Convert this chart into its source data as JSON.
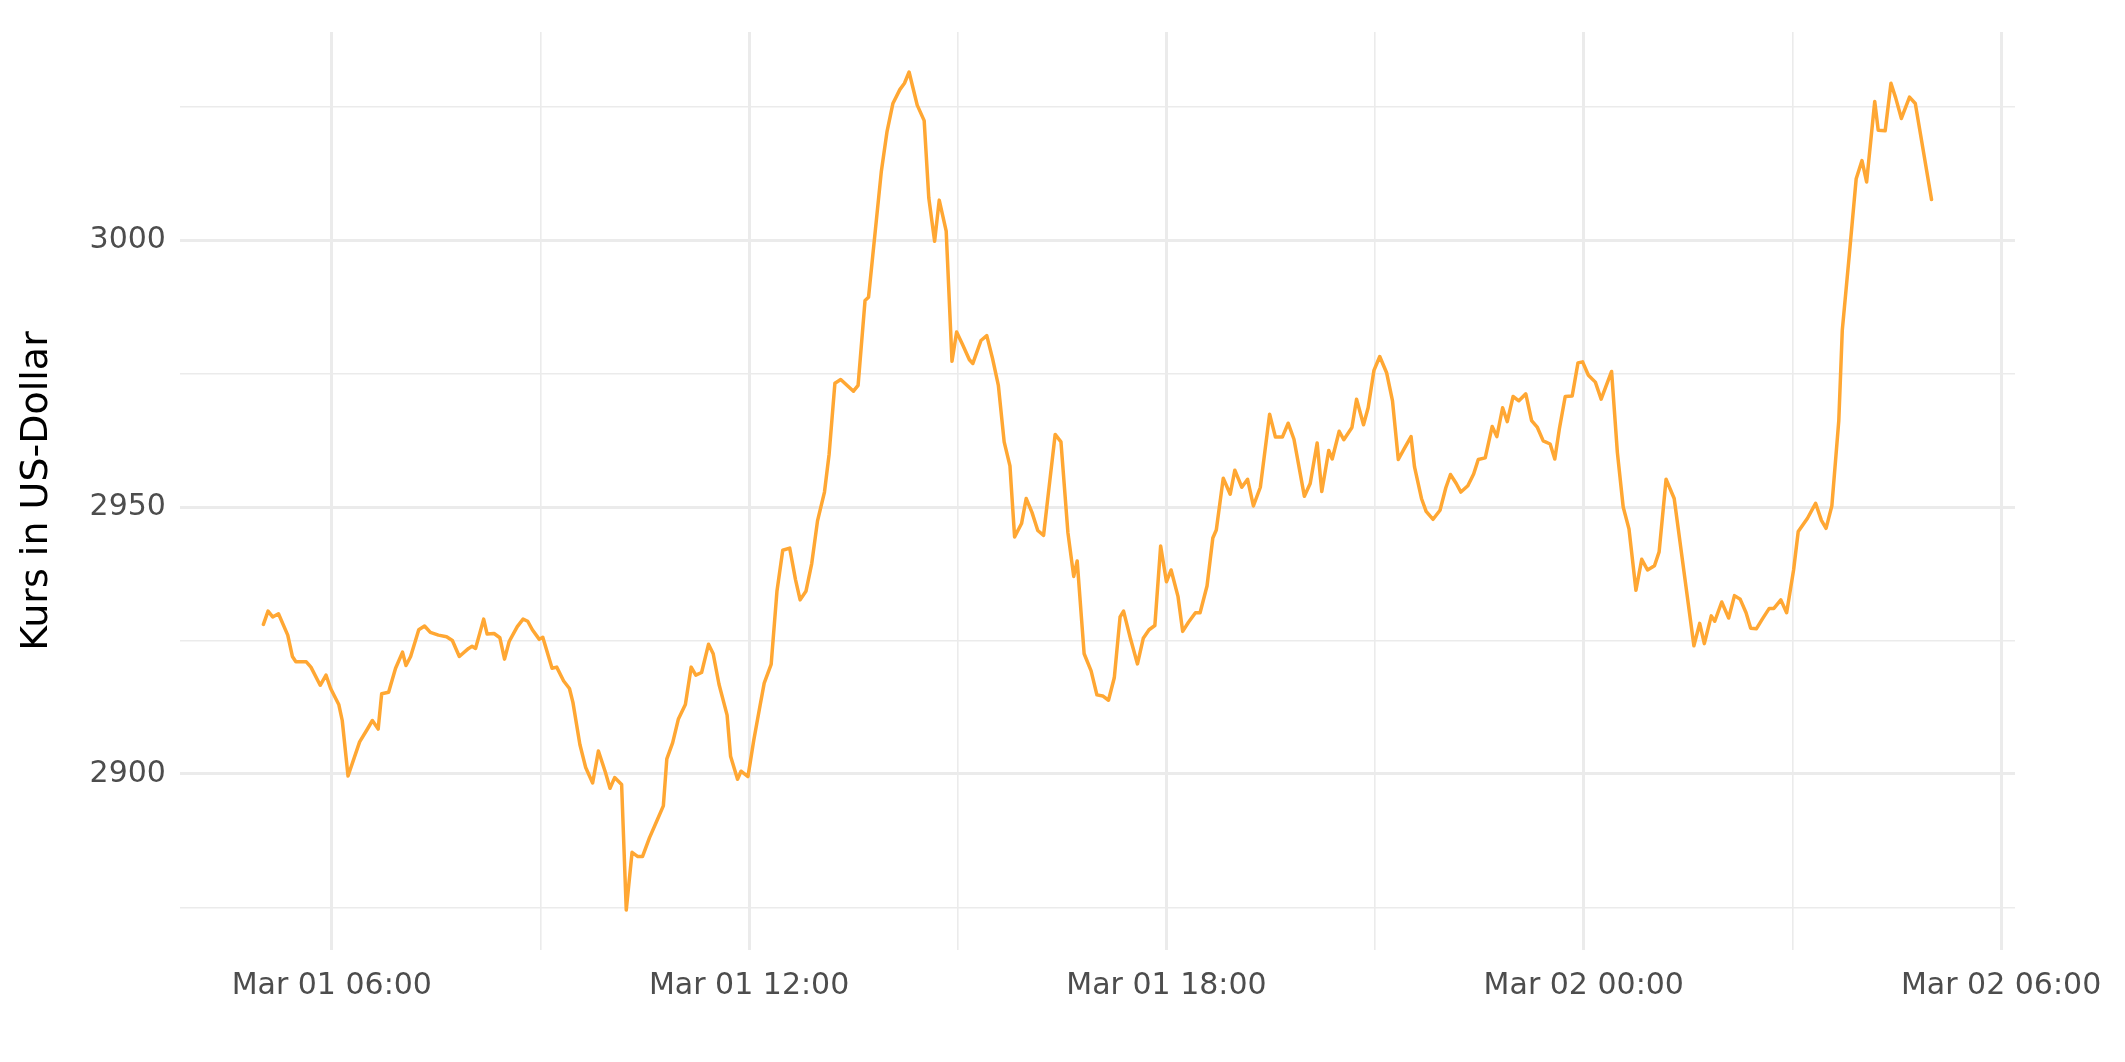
{
  "chart_data": {
    "type": "line",
    "ylabel": "Kurs in US-Dollar",
    "xlim": [
      "--03-01T03:49",
      "--03-02T06:12"
    ],
    "ylim": [
      2867,
      3039
    ],
    "xticks": [
      {
        "value": "--03-01T06:00",
        "label": "Mar 01 06:00"
      },
      {
        "value": "--03-01T09:00",
        "label": null
      },
      {
        "value": "--03-01T12:00",
        "label": "Mar 01 12:00"
      },
      {
        "value": "--03-01T15:00",
        "label": null
      },
      {
        "value": "--03-01T18:00",
        "label": "Mar 01 18:00"
      },
      {
        "value": "--03-01T21:00",
        "label": null
      },
      {
        "value": "--03-02T00:00",
        "label": "Mar 02 00:00"
      },
      {
        "value": "--03-02T03:00",
        "label": null
      },
      {
        "value": "--03-02T06:00",
        "label": "Mar 02 06:00"
      }
    ],
    "yticks": [
      {
        "value": 2875,
        "label": null
      },
      2900,
      {
        "value": 2925,
        "label": null
      },
      2950,
      {
        "value": 2975,
        "label": null
      },
      3000,
      {
        "value": 3025,
        "label": null
      }
    ],
    "grid": true,
    "marker": "none",
    "line_style": "solid",
    "series": [
      {
        "color": "#ffa733",
        "x": [
          "--03-01T05:01",
          "--03-01T05:05",
          "--03-01T05:09",
          "--03-01T05:14",
          "--03-01T05:22",
          "--03-01T05:26",
          "--03-01T05:29",
          "--03-01T05:38",
          "--03-01T05:42",
          "--03-01T05:50",
          "--03-01T05:55",
          "--03-01T05:59",
          "--03-01T06:06",
          "--03-01T06:09",
          "--03-01T06:14",
          "--03-01T06:24",
          "--03-01T06:31",
          "--03-01T06:35",
          "--03-01T06:40",
          "--03-01T06:43",
          "--03-01T06:49",
          "--03-01T06:55",
          "--03-01T07:01",
          "--03-01T07:04",
          "--03-01T07:08",
          "--03-01T07:15",
          "--03-01T07:20",
          "--03-01T07:25",
          "--03-01T07:32",
          "--03-01T07:39",
          "--03-01T07:44",
          "--03-01T07:50",
          "--03-01T07:58",
          "--03-01T08:01",
          "--03-01T08:04",
          "--03-01T08:11",
          "--03-01T08:14",
          "--03-01T08:20",
          "--03-01T08:25",
          "--03-01T08:29",
          "--03-01T08:33",
          "--03-01T08:40",
          "--03-01T08:45",
          "--03-01T08:49",
          "--03-01T08:53",
          "--03-01T08:59",
          "--03-01T09:02",
          "--03-01T09:10",
          "--03-01T09:14",
          "--03-01T09:20",
          "--03-01T09:25",
          "--03-01T09:28",
          "--03-01T09:34",
          "--03-01T09:39",
          "--03-01T09:45",
          "--03-01T09:50",
          "--03-01T09:56",
          "--03-01T10:00",
          "--03-01T10:04",
          "--03-01T10:10",
          "--03-01T10:14",
          "--03-01T10:19",
          "--03-01T10:24",
          "--03-01T10:28",
          "--03-01T10:34",
          "--03-01T10:41",
          "--03-01T10:46",
          "--03-01T10:49",
          "--03-01T10:54",
          "--03-01T10:59",
          "--03-01T11:05",
          "--03-01T11:10",
          "--03-01T11:14",
          "--03-01T11:19",
          "--03-01T11:25",
          "--03-01T11:29",
          "--03-01T11:34",
          "--03-01T11:41",
          "--03-01T11:44",
          "--03-01T11:50",
          "--03-01T11:53",
          "--03-01T11:59",
          "--03-01T12:04",
          "--03-01T12:09",
          "--03-01T12:13",
          "--03-01T12:19",
          "--03-01T12:24",
          "--03-01T12:29",
          "--03-01T12:35",
          "--03-01T12:40",
          "--03-01T12:44",
          "--03-01T12:49",
          "--03-01T12:54",
          "--03-01T12:59",
          "--03-01T13:05",
          "--03-01T13:09",
          "--03-01T13:14",
          "--03-01T13:19",
          "--03-01T13:30",
          "--03-01T13:34",
          "--03-01T13:40",
          "--03-01T13:43",
          "--03-01T13:49",
          "--03-01T13:54",
          "--03-01T13:59",
          "--03-01T14:04",
          "--03-01T14:10",
          "--03-01T14:14",
          "--03-01T14:18",
          "--03-01T14:25",
          "--03-01T14:31",
          "--03-01T14:35",
          "--03-01T14:40",
          "--03-01T14:44",
          "--03-01T14:50",
          "--03-01T14:55",
          "--03-01T14:59",
          "--03-01T15:04",
          "--03-01T15:10",
          "--03-01T15:13",
          "--03-01T15:20",
          "--03-01T15:25",
          "--03-01T15:30",
          "--03-01T15:35",
          "--03-01T15:40",
          "--03-01T15:45",
          "--03-01T15:49",
          "--03-01T15:55",
          "--03-01T15:59",
          "--03-01T16:04",
          "--03-01T16:09",
          "--03-01T16:14",
          "--03-01T16:19",
          "--03-01T16:24",
          "--03-01T16:29",
          "--03-01T16:35",
          "--03-01T16:40",
          "--03-01T16:43",
          "--03-01T16:49",
          "--03-01T16:55",
          "--03-01T17:00",
          "--03-01T17:05",
          "--03-01T17:10",
          "--03-01T17:15",
          "--03-01T17:20",
          "--03-01T17:23",
          "--03-01T17:29",
          "--03-01T17:35",
          "--03-01T17:40",
          "--03-01T17:45",
          "--03-01T17:50",
          "--03-01T17:55",
          "--03-01T18:00",
          "--03-01T18:04",
          "--03-01T18:10",
          "--03-01T18:14",
          "--03-01T18:19",
          "--03-01T18:25",
          "--03-01T18:29",
          "--03-01T18:35",
          "--03-01T18:40",
          "--03-01T18:43",
          "--03-01T18:49",
          "--03-01T18:55",
          "--03-01T18:59",
          "--03-01T19:05",
          "--03-01T19:10",
          "--03-01T19:15",
          "--03-01T19:21",
          "--03-01T19:29",
          "--03-01T19:34",
          "--03-01T19:40",
          "--03-01T19:45",
          "--03-01T19:50",
          "--03-01T19:59",
          "--03-01T20:04",
          "--03-01T20:10",
          "--03-01T20:14",
          "--03-01T20:20",
          "--03-01T20:23",
          "--03-01T20:29",
          "--03-01T20:33",
          "--03-01T20:40",
          "--03-01T20:44",
          "--03-01T20:50",
          "--03-01T20:54",
          "--03-01T20:59",
          "--03-01T21:04",
          "--03-01T21:10",
          "--03-01T21:15",
          "--03-01T21:20",
          "--03-01T21:25",
          "--03-01T21:31",
          "--03-01T21:34",
          "--03-01T21:40",
          "--03-01T21:44",
          "--03-01T21:50",
          "--03-01T21:56",
          "--03-01T22:01",
          "--03-01T22:05",
          "--03-01T22:10",
          "--03-01T22:14",
          "--03-01T22:20",
          "--03-01T22:25",
          "--03-01T22:29",
          "--03-01T22:35",
          "--03-01T22:41",
          "--03-01T22:45",
          "--03-01T22:50",
          "--03-01T22:54",
          "--03-01T22:59",
          "--03-01T23:04",
          "--03-01T23:10",
          "--03-01T23:15",
          "--03-01T23:20",
          "--03-01T23:25",
          "--03-01T23:31",
          "--03-01T23:35",
          "--03-01T23:39",
          "--03-01T23:44",
          "--03-01T23:50",
          "--03-01T23:55",
          "--03-01T23:59",
          "--03-02T00:04",
          "--03-02T00:10",
          "--03-02T00:15",
          "--03-02T00:24",
          "--03-02T00:29",
          "--03-02T00:34",
          "--03-02T00:39",
          "--03-02T00:45",
          "--03-02T00:50",
          "--03-02T00:55",
          "--03-02T01:01",
          "--03-02T01:05",
          "--03-02T01:11",
          "--03-02T01:18",
          "--03-02T01:35",
          "--03-02T01:40",
          "--03-02T01:44",
          "--03-02T01:50",
          "--03-02T01:53",
          "--03-02T01:59",
          "--03-02T02:05",
          "--03-02T02:10",
          "--03-02T02:15",
          "--03-02T02:20",
          "--03-02T02:24",
          "--03-02T02:29",
          "--03-02T02:34",
          "--03-02T02:40",
          "--03-02T02:44",
          "--03-02T02:50",
          "--03-02T02:55",
          "--03-02T03:01",
          "--03-02T03:05",
          "--03-02T03:13",
          "--03-02T03:20",
          "--03-02T03:25",
          "--03-02T03:29",
          "--03-02T03:34",
          "--03-02T03:40",
          "--03-02T03:43",
          "--03-02T03:49",
          "--03-02T03:55",
          "--03-02T04:00",
          "--03-02T04:04",
          "--03-02T04:11",
          "--03-02T04:14",
          "--03-02T04:20",
          "--03-02T04:25",
          "--03-02T04:29",
          "--03-02T04:34",
          "--03-02T04:41",
          "--03-02T04:46",
          "--03-02T04:53",
          "--03-02T05:00"
        ],
        "values": [
          2928,
          2930.5,
          2929.4,
          2930,
          2926,
          2922,
          2921,
          2921,
          2920,
          2916.6,
          2918.5,
          2916,
          2913,
          2910,
          2899.6,
          2906,
          2908.5,
          2910,
          2908.4,
          2915,
          2915.3,
          2919.8,
          2922.8,
          2920.3,
          2922,
          2927,
          2927.7,
          2926.5,
          2926,
          2925.7,
          2925,
          2922,
          2923.5,
          2923.9,
          2923.5,
          2929,
          2926.2,
          2926.3,
          2925.5,
          2921.5,
          2924.8,
          2927.6,
          2929,
          2928.6,
          2927,
          2925.2,
          2925.6,
          2919.8,
          2920,
          2917.4,
          2916,
          2913.4,
          2905.5,
          2901.2,
          2898.3,
          2904.3,
          2900.3,
          2897.3,
          2899.3,
          2898,
          2874.5,
          2885.3,
          2884.5,
          2884.5,
          2888,
          2891.5,
          2894,
          2902.8,
          2905.8,
          2910.3,
          2913,
          2920,
          2918.5,
          2919,
          2924.3,
          2922.5,
          2916.8,
          2911,
          2903.3,
          2899,
          2900.5,
          2899.5,
          2906.3,
          2912.3,
          2917,
          2920.5,
          2934.2,
          2941.9,
          2942.3,
          2936.4,
          2932.6,
          2934.2,
          2939.4,
          2947.4,
          2952.8,
          2959.9,
          2973.2,
          2973.9,
          2971.7,
          2972.8,
          2988.7,
          2989.3,
          3002.1,
          3012.8,
          3020.4,
          3025.6,
          3028.2,
          3029.4,
          3031.5,
          3025.3,
          3022.4,
          3007.9,
          2999.8,
          3007.5,
          3001.7,
          2977.3,
          2982.8,
          2980.5,
          2977.6,
          2976.9,
          2981.2,
          2982.1,
          2977.8,
          2972.8,
          2962.2,
          2957.7,
          2944.4,
          2946.9,
          2951.6,
          2949,
          2945.6,
          2944.7,
          2954.2,
          2963.6,
          2962.2,
          2945.2,
          2937,
          2939.9,
          2922.5,
          2919.3,
          2914.8,
          2914.6,
          2913.8,
          2918,
          2929.4,
          2930.5,
          2925.3,
          2920.6,
          2925.4,
          2927,
          2927.8,
          2942.7,
          2936,
          2938.2,
          2933.2,
          2926.7,
          2928.4,
          2930.2,
          2930.2,
          2935.2,
          2944.2,
          2945.7,
          2955.4,
          2952.4,
          2956.9,
          2953.7,
          2955.2,
          2950.2,
          2953.7,
          2967.4,
          2963.1,
          2963.1,
          2965.7,
          2962.7,
          2952,
          2954.4,
          2962,
          2952.9,
          2960.6,
          2959,
          2964.2,
          2962.6,
          2964.9,
          2970.2,
          2965.4,
          2968.6,
          2975.6,
          2978.2,
          2975.1,
          2969.9,
          2958.9,
          2960.9,
          2963.2,
          2957.5,
          2951.6,
          2949.2,
          2947.7,
          2949.4,
          2953.6,
          2956.1,
          2954.4,
          2952.8,
          2954,
          2956.2,
          2958.9,
          2959.2,
          2965.1,
          2963.2,
          2968.6,
          2966,
          2970.7,
          2969.9,
          2971.2,
          2966.2,
          2964.9,
          2962.4,
          2961.8,
          2959,
          2964.7,
          2970.7,
          2970.8,
          2977,
          2977.2,
          2974.7,
          2973.4,
          2970.2,
          2975.4,
          2960.2,
          2950,
          2945.9,
          2934.4,
          2940.2,
          2938.2,
          2939,
          2941.6,
          2955.2,
          2951.6,
          2924,
          2928.2,
          2924.4,
          2929.6,
          2928.6,
          2932.2,
          2929.2,
          2933.4,
          2932.7,
          2930.2,
          2927.3,
          2927.2,
          2929,
          2931,
          2931,
          2932.6,
          2930.2,
          2938.2,
          2945.4,
          2947.9,
          2950.7,
          2947.5,
          2946,
          2950.2,
          2966.2,
          2983.1,
          2997.1,
          3011.5,
          3014.9,
          3010.9,
          3026,
          3020.6,
          3020.5,
          3029.4,
          3026.7,
          3022.8,
          3026.8,
          3025.6,
          3016.6,
          3007.6
        ]
      }
    ]
  }
}
